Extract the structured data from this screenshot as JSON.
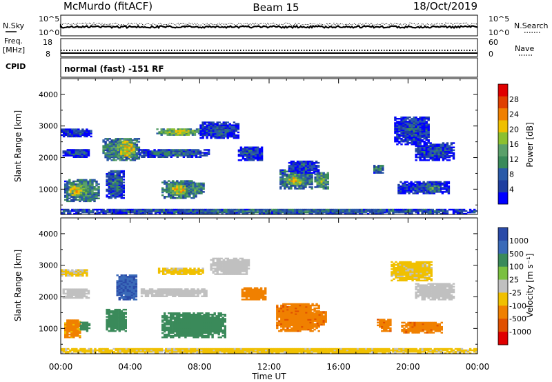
{
  "header": {
    "station": "McMurdo (fitACF)",
    "beam": "Beam 15",
    "date": "18/Oct/2019"
  },
  "top_panel": {
    "left_label": "N.Sky",
    "right_label": "N.Search",
    "left_ticks": [
      "10^5",
      "10^0"
    ],
    "right_ticks": [
      "10^5",
      "10^0"
    ]
  },
  "freq_panel": {
    "left_label_1": "Freq.",
    "left_label_2": "[MHz]",
    "right_label": "Nave",
    "left_ticks": [
      "18",
      "8"
    ],
    "right_ticks": [
      "60",
      "0"
    ]
  },
  "cpid": {
    "label": "CPID",
    "value": "normal (fast) -151 RF"
  },
  "x_axis": {
    "title": "Time UT",
    "ticks": [
      "00:00",
      "04:00",
      "08:00",
      "12:00",
      "16:00",
      "20:00",
      "00:00"
    ]
  },
  "colors": {
    "power_scale": [
      "#0000ff",
      "#1f3fa0",
      "#2a5aa8",
      "#3a8a5a",
      "#5aa06a",
      "#8cc030",
      "#f0c000",
      "#f08000",
      "#e04000",
      "#e00000"
    ],
    "velocity_scale": [
      "#2a4aa8",
      "#3a6ab8",
      "#3a8a5a",
      "#7ac040",
      "#c0c0c0",
      "#f0c000",
      "#f08000",
      "#e05000",
      "#e00000"
    ]
  },
  "chart_data": [
    {
      "type": "heatmap",
      "panel": "power",
      "xlabel": "",
      "ylabel": "Slant Range [km]",
      "ylim": [
        200,
        4500
      ],
      "yticks": [
        "1000",
        "2000",
        "3000",
        "4000"
      ],
      "xlim": [
        "00:00",
        "24:00"
      ],
      "colorbar": {
        "label": "Power [dB]",
        "ticks": [
          "4",
          "8",
          "12",
          "16",
          "20",
          "24",
          "28"
        ],
        "range": [
          0,
          32
        ]
      },
      "regions": [
        {
          "t0": 0.1,
          "t1": 1.6,
          "r0": 2000,
          "r1": 2250,
          "value": 8
        },
        {
          "t0": 0.2,
          "t1": 2.2,
          "r0": 600,
          "r1": 1300,
          "value": 14
        },
        {
          "t0": 0.5,
          "t1": 1.2,
          "r0": 800,
          "r1": 1100,
          "value": 22
        },
        {
          "t0": 0.0,
          "t1": 1.8,
          "r0": 2650,
          "r1": 2900,
          "value": 8
        },
        {
          "t0": 2.4,
          "t1": 4.5,
          "r0": 1900,
          "r1": 2600,
          "value": 14
        },
        {
          "t0": 3.3,
          "t1": 4.2,
          "r0": 2000,
          "r1": 2500,
          "value": 22
        },
        {
          "t0": 2.6,
          "t1": 3.6,
          "r0": 700,
          "r1": 1600,
          "value": 10
        },
        {
          "t0": 4.5,
          "t1": 8.5,
          "r0": 2000,
          "r1": 2250,
          "value": 10
        },
        {
          "t0": 5.5,
          "t1": 8.2,
          "r0": 2700,
          "r1": 2900,
          "value": 18
        },
        {
          "t0": 5.8,
          "t1": 7.8,
          "r0": 700,
          "r1": 1250,
          "value": 14
        },
        {
          "t0": 6.4,
          "t1": 7.2,
          "r0": 850,
          "r1": 1100,
          "value": 22
        },
        {
          "t0": 7.2,
          "t1": 8.2,
          "r0": 850,
          "r1": 1200,
          "value": 14
        },
        {
          "t0": 8.0,
          "t1": 10.2,
          "r0": 2600,
          "r1": 3100,
          "value": 8
        },
        {
          "t0": 10.2,
          "t1": 11.6,
          "r0": 1900,
          "r1": 2350,
          "value": 8
        },
        {
          "t0": 12.6,
          "t1": 14.4,
          "r0": 1000,
          "r1": 1600,
          "value": 14
        },
        {
          "t0": 13.0,
          "t1": 13.8,
          "r0": 1150,
          "r1": 1350,
          "value": 22
        },
        {
          "t0": 13.1,
          "t1": 14.8,
          "r0": 1500,
          "r1": 1900,
          "value": 8
        },
        {
          "t0": 14.6,
          "t1": 15.4,
          "r0": 1000,
          "r1": 1500,
          "value": 16
        },
        {
          "t0": 18.0,
          "t1": 18.6,
          "r0": 1500,
          "r1": 1750,
          "value": 12
        },
        {
          "t0": 19.2,
          "t1": 21.2,
          "r0": 2400,
          "r1": 3300,
          "value": 8
        },
        {
          "t0": 20.4,
          "t1": 22.6,
          "r0": 1900,
          "r1": 2450,
          "value": 8
        },
        {
          "t0": 19.4,
          "t1": 22.4,
          "r0": 850,
          "r1": 1250,
          "value": 8
        },
        {
          "t0": 21.0,
          "t1": 21.8,
          "r0": 900,
          "r1": 1100,
          "value": 14
        },
        {
          "t0": 0.0,
          "t1": 24.0,
          "r0": 200,
          "r1": 380,
          "value": 10
        }
      ]
    },
    {
      "type": "heatmap",
      "panel": "velocity",
      "xlabel": "Time UT",
      "ylabel": "Slant Range [km]",
      "ylim": [
        200,
        4500
      ],
      "yticks": [
        "1000",
        "2000",
        "3000",
        "4000"
      ],
      "xlim": [
        "00:00",
        "24:00"
      ],
      "colorbar": {
        "label": "Velocity [m s⁻¹]",
        "ticks": [
          "1000",
          "500",
          "100",
          "25",
          "-25",
          "-100",
          "-500",
          "-1000"
        ]
      },
      "regions": [
        {
          "t0": 0.1,
          "t1": 1.6,
          "r0": 1950,
          "r1": 2250,
          "value": 0
        },
        {
          "t0": 0.2,
          "t1": 1.1,
          "r0": 700,
          "r1": 1250,
          "value": -150
        },
        {
          "t0": 1.1,
          "t1": 1.6,
          "r0": 900,
          "r1": 1200,
          "value": 200
        },
        {
          "t0": 0.0,
          "t1": 1.5,
          "r0": 2650,
          "r1": 2850,
          "value": -30
        },
        {
          "t0": 2.6,
          "t1": 3.8,
          "r0": 900,
          "r1": 1600,
          "value": 150
        },
        {
          "t0": 3.2,
          "t1": 4.4,
          "r0": 1900,
          "r1": 2700,
          "value": 600
        },
        {
          "t0": 4.6,
          "t1": 8.4,
          "r0": 2000,
          "r1": 2250,
          "value": 0
        },
        {
          "t0": 5.6,
          "t1": 8.2,
          "r0": 2700,
          "r1": 2900,
          "value": -40
        },
        {
          "t0": 5.8,
          "t1": 9.4,
          "r0": 700,
          "r1": 1500,
          "value": 150
        },
        {
          "t0": 8.6,
          "t1": 10.8,
          "r0": 2700,
          "r1": 3200,
          "value": 0
        },
        {
          "t0": 10.4,
          "t1": 11.8,
          "r0": 1900,
          "r1": 2300,
          "value": -200
        },
        {
          "t0": 12.4,
          "t1": 14.8,
          "r0": 900,
          "r1": 1800,
          "value": -300
        },
        {
          "t0": 14.6,
          "t1": 15.2,
          "r0": 1100,
          "r1": 1550,
          "value": -300
        },
        {
          "t0": 18.2,
          "t1": 19.0,
          "r0": 900,
          "r1": 1300,
          "value": -300
        },
        {
          "t0": 19.0,
          "t1": 21.4,
          "r0": 2500,
          "r1": 3100,
          "value": -40
        },
        {
          "t0": 20.4,
          "t1": 22.6,
          "r0": 1900,
          "r1": 2400,
          "value": 0
        },
        {
          "t0": 19.6,
          "t1": 22.0,
          "r0": 850,
          "r1": 1200,
          "value": -300
        },
        {
          "t0": 0.0,
          "t1": 24.0,
          "r0": 200,
          "r1": 380,
          "value": -40
        }
      ]
    }
  ]
}
